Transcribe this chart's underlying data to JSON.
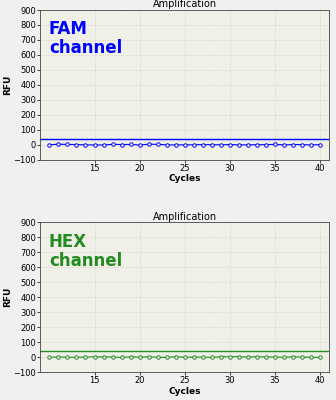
{
  "title": "Amplification",
  "xlabel": "Cycles",
  "ylabel": "RFU",
  "ylim": [
    -100,
    900
  ],
  "yticks": [
    -100,
    0,
    100,
    200,
    300,
    400,
    500,
    600,
    700,
    800,
    900
  ],
  "xlim": [
    9,
    41
  ],
  "xticks": [
    15,
    20,
    25,
    30,
    35,
    40
  ],
  "cycles_start": 10,
  "cycles_end": 40,
  "fam_label": "FAM\nchannel",
  "fam_color": "#0000FF",
  "fam_threshold_y": 40.0,
  "hex_label": "HEX\nchannel",
  "hex_color": "#228B22",
  "hex_threshold_y": 42.0,
  "bg_color": "#f0f0e8",
  "grid_color": "#c8c8b0",
  "title_fontsize": 7,
  "axis_label_fontsize": 6.5,
  "tick_fontsize": 6,
  "channel_label_fontsize": 12,
  "data_noise_amplitude": 3.0,
  "fig_bg": "#f0f0f0"
}
